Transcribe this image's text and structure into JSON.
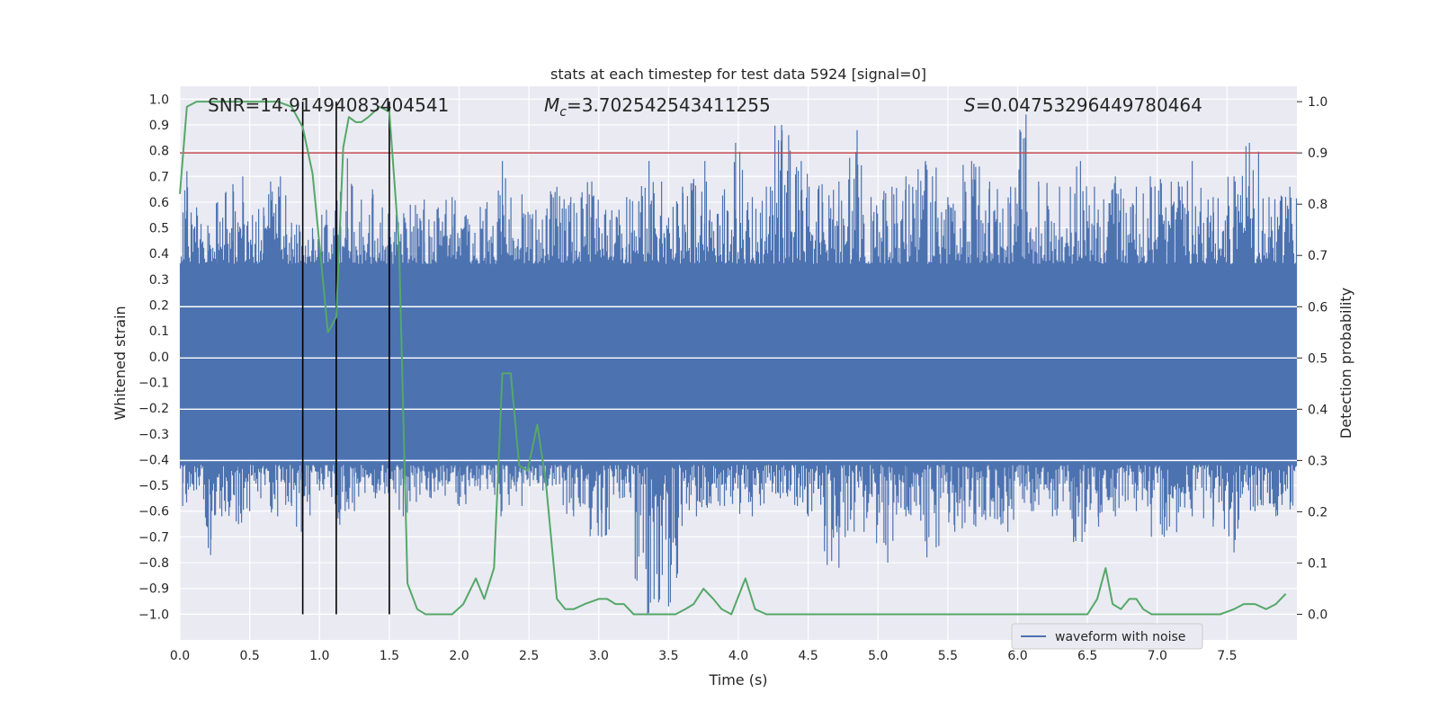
{
  "chart_data": {
    "type": "line",
    "title": "stats at each timestep for test data 5924 [signal=0]",
    "xlabel": "Time (s)",
    "ylabel_left": "Whitened strain",
    "ylabel_right": "Detection probability",
    "xlim": [
      0.0,
      8.0
    ],
    "ylim_left": [
      -1.1,
      1.05
    ],
    "ylim_right": [
      -0.05,
      1.03
    ],
    "x_ticks": [
      0.0,
      0.5,
      1.0,
      1.5,
      2.0,
      2.5,
      3.0,
      3.5,
      4.0,
      4.5,
      5.0,
      5.5,
      6.0,
      6.5,
      7.0,
      7.5
    ],
    "x_tick_labels": [
      "0.0",
      "0.5",
      "1.0",
      "1.5",
      "2.0",
      "2.5",
      "3.0",
      "3.5",
      "4.0",
      "4.5",
      "5.0",
      "5.5",
      "6.0",
      "6.5",
      "7.0",
      "7.5"
    ],
    "y_left_ticks": [
      1.0,
      0.9,
      0.8,
      0.7,
      0.6,
      0.5,
      0.4,
      0.3,
      0.2,
      0.1,
      0.0,
      -0.1,
      -0.2,
      -0.3,
      -0.4,
      -0.5,
      -0.6,
      -0.7,
      -0.8,
      -0.9,
      -1.0
    ],
    "y_left_tick_labels": [
      "1.0",
      "0.9",
      "0.8",
      "0.7",
      "0.6",
      "0.5",
      "0.4",
      "0.3",
      "0.2",
      "0.1",
      "0.0",
      "−0.1",
      "−0.2",
      "−0.3",
      "−0.4",
      "−0.5",
      "−0.6",
      "−0.7",
      "−0.8",
      "−0.9",
      "−1.0"
    ],
    "y_right_ticks": [
      1.0,
      0.9,
      0.8,
      0.7,
      0.6,
      0.5,
      0.4,
      0.3,
      0.2,
      0.1,
      0.0
    ],
    "y_right_tick_labels": [
      "1.0",
      "0.9",
      "0.8",
      "0.7",
      "0.6",
      "0.5",
      "0.4",
      "0.3",
      "0.2",
      "0.1",
      "0.0"
    ],
    "grid": true,
    "legend": {
      "position": "lower-right",
      "entries": [
        "waveform with noise"
      ]
    },
    "annotations": {
      "snr": "SNR=14.91494083404541",
      "mc_symbol": "M",
      "mc_sub": "c",
      "mc_value": "=3.702542543411255",
      "s_symbol": "S",
      "s_value": "=0.04753296449780464"
    },
    "threshold": {
      "value": 0.9,
      "axis": "right",
      "color": "#c44e52"
    },
    "vertical_lines": [
      0.88,
      1.12,
      1.5
    ],
    "waveform": {
      "name": "waveform with noise",
      "color": "#4c72b0",
      "envelope_upper": 0.36,
      "envelope_lower": -0.42,
      "peaks": [
        [
          0.05,
          0.72
        ],
        [
          0.12,
          0.58
        ],
        [
          0.2,
          0.51
        ],
        [
          0.27,
          0.6
        ],
        [
          0.33,
          0.64
        ],
        [
          0.38,
          0.67
        ],
        [
          0.45,
          0.7
        ],
        [
          0.52,
          0.55
        ],
        [
          0.6,
          0.58
        ],
        [
          0.65,
          0.68
        ],
        [
          0.72,
          0.7
        ],
        [
          0.8,
          0.52
        ],
        [
          0.95,
          0.5
        ],
        [
          1.05,
          0.57
        ],
        [
          1.15,
          0.64
        ],
        [
          1.2,
          0.77
        ],
        [
          1.3,
          0.61
        ],
        [
          1.38,
          0.65
        ],
        [
          1.45,
          0.58
        ],
        [
          1.55,
          0.55
        ],
        [
          1.65,
          0.59
        ],
        [
          1.75,
          0.61
        ],
        [
          1.85,
          0.58
        ],
        [
          1.95,
          0.62
        ],
        [
          2.05,
          0.55
        ],
        [
          2.2,
          0.6
        ],
        [
          2.31,
          0.76
        ],
        [
          2.45,
          0.63
        ],
        [
          2.55,
          0.57
        ],
        [
          2.7,
          0.66
        ],
        [
          2.8,
          0.62
        ],
        [
          2.95,
          0.68
        ],
        [
          3.05,
          0.57
        ],
        [
          3.2,
          0.62
        ],
        [
          3.36,
          0.76
        ],
        [
          3.45,
          0.68
        ],
        [
          3.6,
          0.66
        ],
        [
          3.68,
          0.69
        ],
        [
          3.76,
          0.76
        ],
        [
          3.9,
          0.65
        ],
        [
          3.98,
          0.83
        ],
        [
          4.1,
          0.62
        ],
        [
          4.2,
          0.66
        ],
        [
          4.31,
          0.9
        ],
        [
          4.36,
          0.86
        ],
        [
          4.45,
          0.76
        ],
        [
          4.6,
          0.67
        ],
        [
          4.72,
          0.68
        ],
        [
          4.85,
          0.88
        ],
        [
          4.95,
          0.62
        ],
        [
          5.1,
          0.66
        ],
        [
          5.2,
          0.7
        ],
        [
          5.34,
          0.76
        ],
        [
          5.5,
          0.62
        ],
        [
          5.67,
          0.76
        ],
        [
          5.8,
          0.68
        ],
        [
          5.95,
          0.66
        ],
        [
          6.06,
          0.94
        ],
        [
          6.15,
          0.68
        ],
        [
          6.3,
          0.66
        ],
        [
          6.45,
          0.76
        ],
        [
          6.55,
          0.66
        ],
        [
          6.7,
          0.7
        ],
        [
          6.85,
          0.66
        ],
        [
          6.95,
          0.7
        ],
        [
          7.1,
          0.68
        ],
        [
          7.25,
          0.76
        ],
        [
          7.4,
          0.62
        ],
        [
          7.55,
          0.7
        ],
        [
          7.66,
          0.83
        ],
        [
          7.8,
          0.62
        ],
        [
          7.95,
          0.66
        ]
      ],
      "troughs": [
        [
          0.02,
          -0.58
        ],
        [
          0.1,
          -0.52
        ],
        [
          0.22,
          -0.77
        ],
        [
          0.3,
          -0.62
        ],
        [
          0.42,
          -0.65
        ],
        [
          0.5,
          -0.6
        ],
        [
          0.58,
          -0.55
        ],
        [
          0.7,
          -0.62
        ],
        [
          0.8,
          -0.58
        ],
        [
          0.87,
          -0.68
        ],
        [
          1.0,
          -0.52
        ],
        [
          1.12,
          -0.68
        ],
        [
          1.25,
          -0.6
        ],
        [
          1.4,
          -0.55
        ],
        [
          1.6,
          -0.62
        ],
        [
          1.8,
          -0.55
        ],
        [
          2.0,
          -0.58
        ],
        [
          2.15,
          -0.52
        ],
        [
          2.3,
          -0.62
        ],
        [
          2.45,
          -0.58
        ],
        [
          2.6,
          -0.52
        ],
        [
          2.82,
          -0.62
        ],
        [
          3.02,
          -0.7
        ],
        [
          3.15,
          -0.55
        ],
        [
          3.35,
          -1.0
        ],
        [
          3.5,
          -0.97
        ],
        [
          3.7,
          -0.62
        ],
        [
          3.9,
          -0.58
        ],
        [
          4.1,
          -0.62
        ],
        [
          4.3,
          -0.55
        ],
        [
          4.5,
          -0.62
        ],
        [
          4.72,
          -0.82
        ],
        [
          4.9,
          -0.68
        ],
        [
          5.07,
          -0.8
        ],
        [
          5.2,
          -0.62
        ],
        [
          5.35,
          -0.78
        ],
        [
          5.55,
          -0.68
        ],
        [
          5.7,
          -0.66
        ],
        [
          5.93,
          -0.68
        ],
        [
          6.1,
          -0.6
        ],
        [
          6.25,
          -0.62
        ],
        [
          6.4,
          -0.72
        ],
        [
          6.58,
          -0.66
        ],
        [
          6.7,
          -0.62
        ],
        [
          6.85,
          -0.6
        ],
        [
          7.05,
          -0.7
        ],
        [
          7.25,
          -0.62
        ],
        [
          7.4,
          -0.66
        ],
        [
          7.55,
          -0.76
        ],
        [
          7.7,
          -0.6
        ],
        [
          7.85,
          -0.62
        ]
      ]
    },
    "detection_probability": {
      "color": "#55a868",
      "x": [
        0.0,
        0.05,
        0.12,
        0.2,
        0.3,
        0.4,
        0.5,
        0.6,
        0.7,
        0.8,
        0.88,
        0.95,
        1.0,
        1.06,
        1.12,
        1.17,
        1.21,
        1.26,
        1.3,
        1.35,
        1.43,
        1.5,
        1.57,
        1.63,
        1.7,
        1.76,
        1.85,
        1.95,
        2.03,
        2.12,
        2.18,
        2.25,
        2.31,
        2.37,
        2.43,
        2.49,
        2.56,
        2.62,
        2.7,
        2.76,
        2.82,
        2.9,
        3.0,
        3.06,
        3.12,
        3.18,
        3.25,
        3.35,
        3.45,
        3.55,
        3.62,
        3.68,
        3.75,
        3.82,
        3.88,
        3.95,
        4.05,
        4.12,
        4.2,
        4.35,
        4.5,
        4.8,
        5.0,
        5.5,
        5.9,
        6.0,
        6.25,
        6.4,
        6.5,
        6.57,
        6.63,
        6.68,
        6.74,
        6.8,
        6.85,
        6.9,
        6.96,
        7.05,
        7.25,
        7.45,
        7.55,
        7.62,
        7.7,
        7.78,
        7.85,
        7.92
      ],
      "y": [
        0.82,
        0.99,
        1.0,
        1.0,
        1.0,
        1.0,
        1.0,
        1.0,
        1.0,
        0.99,
        0.95,
        0.86,
        0.72,
        0.55,
        0.58,
        0.91,
        0.97,
        0.96,
        0.96,
        0.97,
        0.99,
        0.98,
        0.72,
        0.06,
        0.01,
        0.0,
        0.0,
        0.0,
        0.02,
        0.07,
        0.03,
        0.09,
        0.47,
        0.47,
        0.29,
        0.28,
        0.37,
        0.26,
        0.03,
        0.01,
        0.01,
        0.02,
        0.03,
        0.03,
        0.02,
        0.02,
        0.0,
        0.0,
        0.0,
        0.0,
        0.01,
        0.02,
        0.05,
        0.03,
        0.01,
        0.0,
        0.07,
        0.01,
        0.0,
        0.0,
        0.0,
        0.0,
        0.0,
        0.0,
        0.0,
        0.0,
        0.0,
        0.0,
        0.0,
        0.03,
        0.09,
        0.02,
        0.01,
        0.03,
        0.03,
        0.01,
        0.0,
        0.0,
        0.0,
        0.0,
        0.01,
        0.02,
        0.02,
        0.01,
        0.02,
        0.04
      ]
    }
  }
}
